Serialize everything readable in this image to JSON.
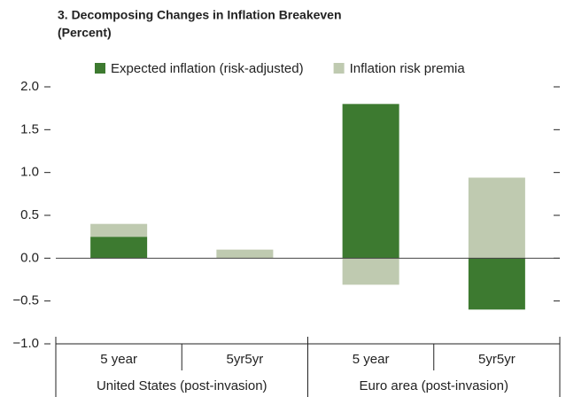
{
  "chart_data": {
    "type": "stacked_bar",
    "title": "3. Decomposing Changes in Inflation Breakeven",
    "subtitle": "(Percent)",
    "categories": [
      "5 year",
      "5yr5yr",
      "5 year",
      "5yr5yr"
    ],
    "groups": [
      "United States (post-invasion)",
      "Euro area (post-invasion)"
    ],
    "series": [
      {
        "name": "Expected inflation (risk-adjusted)",
        "color": "#3d7a30",
        "values": [
          0.25,
          0,
          1.8,
          -0.6
        ]
      },
      {
        "name": "Inflation risk premia",
        "color": "#bfcab0",
        "values": [
          0.15,
          0.1,
          -0.31,
          0.94
        ]
      }
    ],
    "ylim": [
      -1.0,
      2.0
    ],
    "yticks": [
      {
        "value": -1.0,
        "label": "−1.0"
      },
      {
        "value": -0.5,
        "label": "−0.5"
      },
      {
        "value": 0,
        "label": "0.0"
      },
      {
        "value": 0.5,
        "label": "0.5"
      },
      {
        "value": 1.0,
        "label": "1.0"
      },
      {
        "value": 1.5,
        "label": "1.5"
      },
      {
        "value": 2.0,
        "label": "2.0"
      }
    ],
    "legend": "top"
  }
}
